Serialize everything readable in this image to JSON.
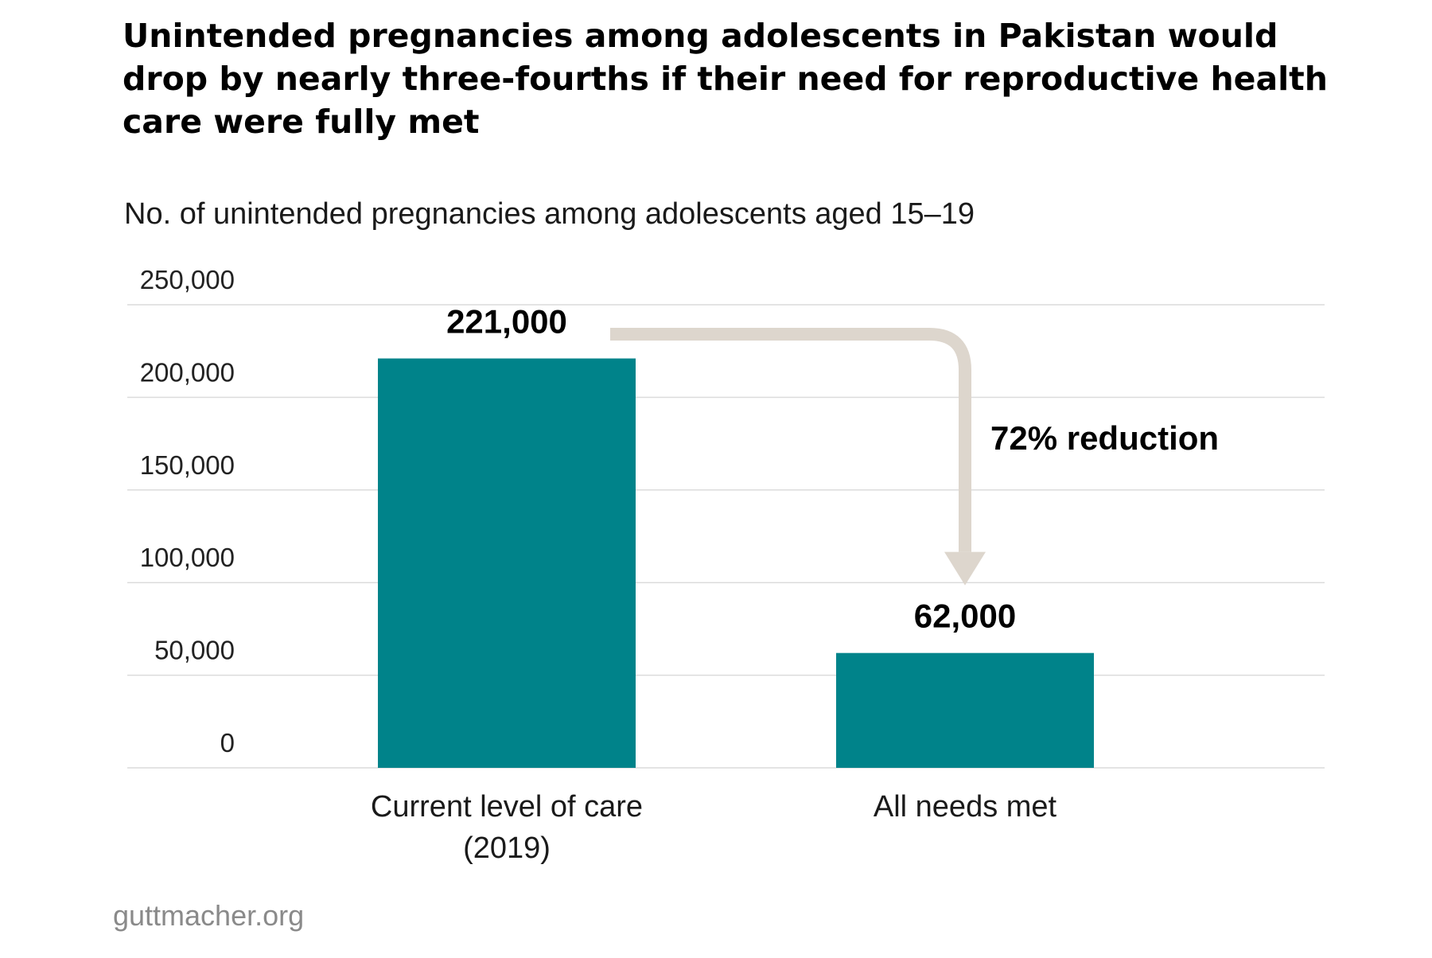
{
  "title": "Unintended pregnancies among adolescents in Pakistan would drop by nearly three-fourths if their need for reproductive health care were fully met",
  "source": "guttmacher.org",
  "chart_data": {
    "type": "bar",
    "title": "Unintended pregnancies among adolescents in Pakistan would drop by nearly three-fourths if their need for reproductive health care were fully met",
    "ylabel": "No. of unintended pregnancies among adolescents aged 15–19",
    "xlabel": "",
    "categories": [
      [
        "Current level of care",
        "(2019)"
      ],
      [
        "All needs met"
      ]
    ],
    "values": [
      221000,
      62000
    ],
    "value_labels": [
      "221,000",
      "62,000"
    ],
    "ylim": [
      0,
      250000
    ],
    "yticks": [
      0,
      50000,
      100000,
      150000,
      200000,
      250000
    ],
    "ytick_labels": [
      "0",
      "50,000",
      "100,000",
      "150,000",
      "200,000",
      "250,000"
    ],
    "grid": true,
    "annotation": "72% reduction",
    "colors": {
      "bar": "#00838a",
      "arrow": "#ddd6cd",
      "grid": "#dcdcdc"
    }
  }
}
